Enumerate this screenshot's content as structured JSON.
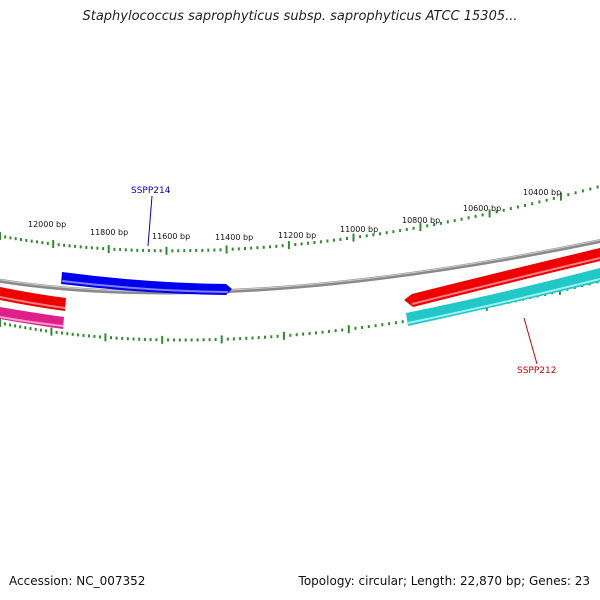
{
  "title": "Staphylococcus saprophyticus subsp. saprophyticus ATCC 15305...",
  "footer": {
    "accession": "Accession: NC_007352",
    "summary": "Topology: circular; Length: 22,870 bp; Genes: 23"
  },
  "colors": {
    "backbone": "#8a8a8a",
    "ticks": "#2e8b2e",
    "gene_blue": "#0000ee",
    "gene_red": "#ee0000",
    "gene_cyan": "#20c8c8",
    "gene_pink": "#e0208a"
  },
  "scale_labels": [
    "10400 bp",
    "10600 bp",
    "10800 bp",
    "11000 bp",
    "11200 bp",
    "11400 bp",
    "11600 bp",
    "11800 bp",
    "12000 bp"
  ],
  "genes": [
    {
      "name": "SSPP214",
      "color": "#0000cc",
      "strand": "forward"
    },
    {
      "name": "SSPP212",
      "color": "#cc0000",
      "strand": "reverse"
    }
  ]
}
